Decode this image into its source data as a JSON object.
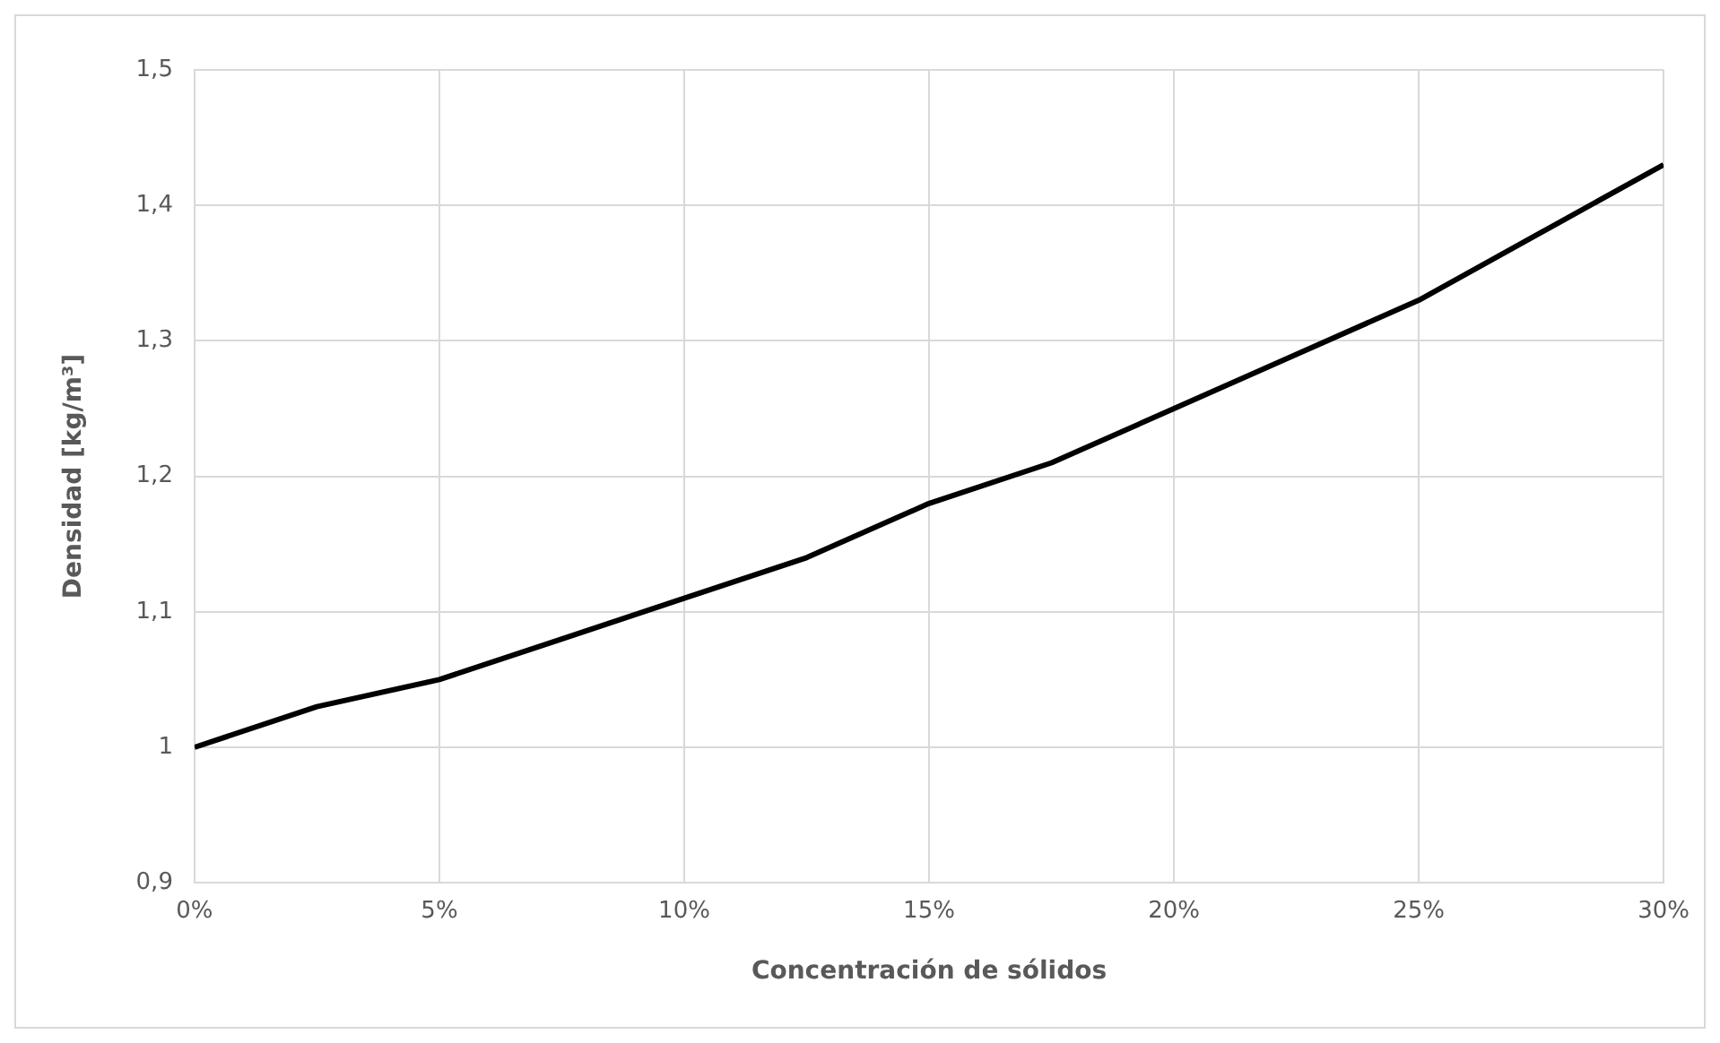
{
  "chart_data": {
    "type": "line",
    "xlabel": "Concentración de sólidos",
    "ylabel": "Densidad [kg/m³]",
    "x": [
      0,
      2.5,
      5,
      7.5,
      10,
      12.5,
      15,
      17.5,
      20,
      22.5,
      25,
      27.5,
      30
    ],
    "series": [
      {
        "color": "#000000",
        "values": [
          1.0,
          1.03,
          1.05,
          1.08,
          1.11,
          1.14,
          1.18,
          1.21,
          1.25,
          1.29,
          1.33,
          1.38,
          1.43
        ]
      }
    ],
    "xlim": [
      0,
      30
    ],
    "xticks": [
      {
        "value": 0,
        "label": "0%"
      },
      {
        "value": 5,
        "label": "5%"
      },
      {
        "value": 10,
        "label": "10%"
      },
      {
        "value": 15,
        "label": "15%"
      },
      {
        "value": 20,
        "label": "20%"
      },
      {
        "value": 25,
        "label": "25%"
      },
      {
        "value": 30,
        "label": "30%"
      }
    ],
    "ylim": [
      0.9,
      1.5
    ],
    "yticks": [
      {
        "value": 0.9,
        "label": "0,9"
      },
      1,
      {
        "value": 1.1,
        "label": "1,1"
      },
      {
        "value": 1.2,
        "label": "1,2"
      },
      {
        "value": 1.3,
        "label": "1,3"
      },
      {
        "value": 1.4,
        "label": "1,4"
      },
      {
        "value": 1.5,
        "label": "1,5"
      }
    ],
    "grid": true,
    "legend": false,
    "marker": "none",
    "line_style": "solid"
  }
}
